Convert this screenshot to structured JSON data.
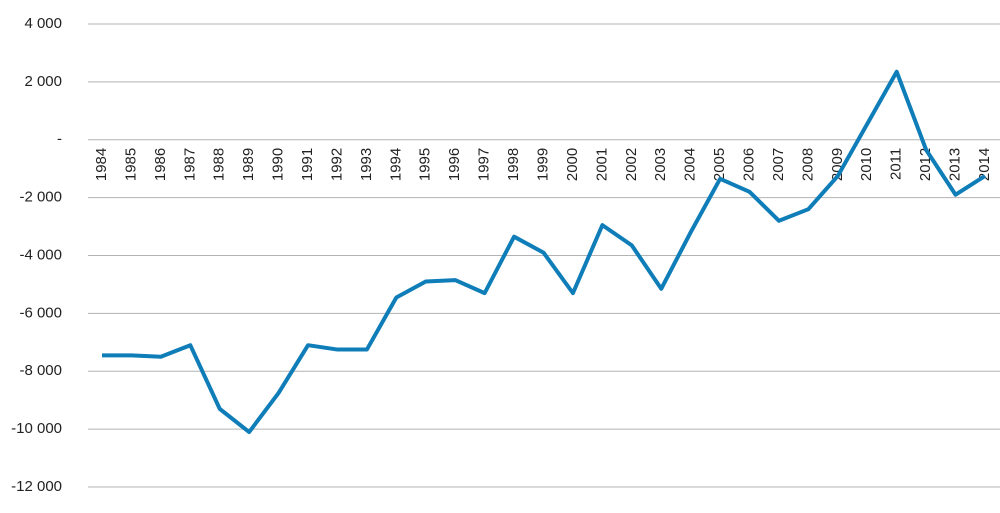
{
  "chart_data": {
    "type": "line",
    "categories": [
      "1984",
      "1985",
      "1986",
      "1987",
      "1988",
      "1989",
      "1990",
      "1991",
      "1992",
      "1993",
      "1994",
      "1995",
      "1996",
      "1997",
      "1998",
      "1999",
      "2000",
      "2001",
      "2002",
      "2003",
      "2004",
      "2005",
      "2006",
      "2007",
      "2008",
      "2009",
      "2010",
      "2011",
      "2012",
      "2013",
      "2014"
    ],
    "values": [
      -7450,
      -7450,
      -7500,
      -7100,
      -9300,
      -10100,
      -8750,
      -7100,
      -7250,
      -7250,
      -5450,
      -4900,
      -4850,
      -5300,
      -3350,
      -3900,
      -5300,
      -2950,
      -3650,
      -5150,
      -3200,
      -1350,
      -1800,
      -2800,
      -2400,
      -1250,
      550,
      2350,
      -350,
      -1900,
      -1250
    ],
    "color": "#0e7db8",
    "ylim": [
      -12000,
      4000
    ],
    "yticks": [
      {
        "value": -12000,
        "label": "-12 000"
      },
      {
        "value": -10000,
        "label": "-10 000"
      },
      {
        "value": -8000,
        "label": "-8 000"
      },
      {
        "value": -6000,
        "label": "-6 000"
      },
      {
        "value": -4000,
        "label": "-4 000"
      },
      {
        "value": -2000,
        "label": "-2 000"
      },
      {
        "value": 0,
        "label": "-"
      },
      {
        "value": 2000,
        "label": "2 000"
      },
      {
        "value": 4000,
        "label": "4 000"
      }
    ],
    "grid": true
  }
}
